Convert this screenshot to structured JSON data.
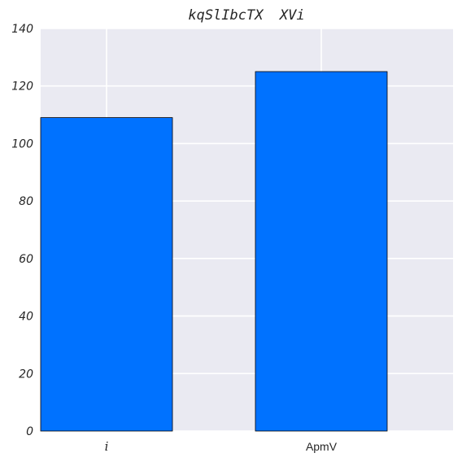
{
  "chart_data": {
    "type": "bar",
    "title": "kqSlIbcTX  XVi",
    "categories": [
      "i",
      "ApmV"
    ],
    "values": [
      109,
      125
    ],
    "xlabel": "",
    "ylabel": "",
    "ylim": [
      0,
      140
    ],
    "yticks": [
      0,
      20,
      40,
      60,
      80,
      100,
      120,
      140
    ],
    "grid": true,
    "legend": "none",
    "colors": {
      "bar": "#0072ff",
      "bar_edge": "#000000",
      "plot_background": "#eaeaf2",
      "grid": "#ffffff"
    }
  }
}
